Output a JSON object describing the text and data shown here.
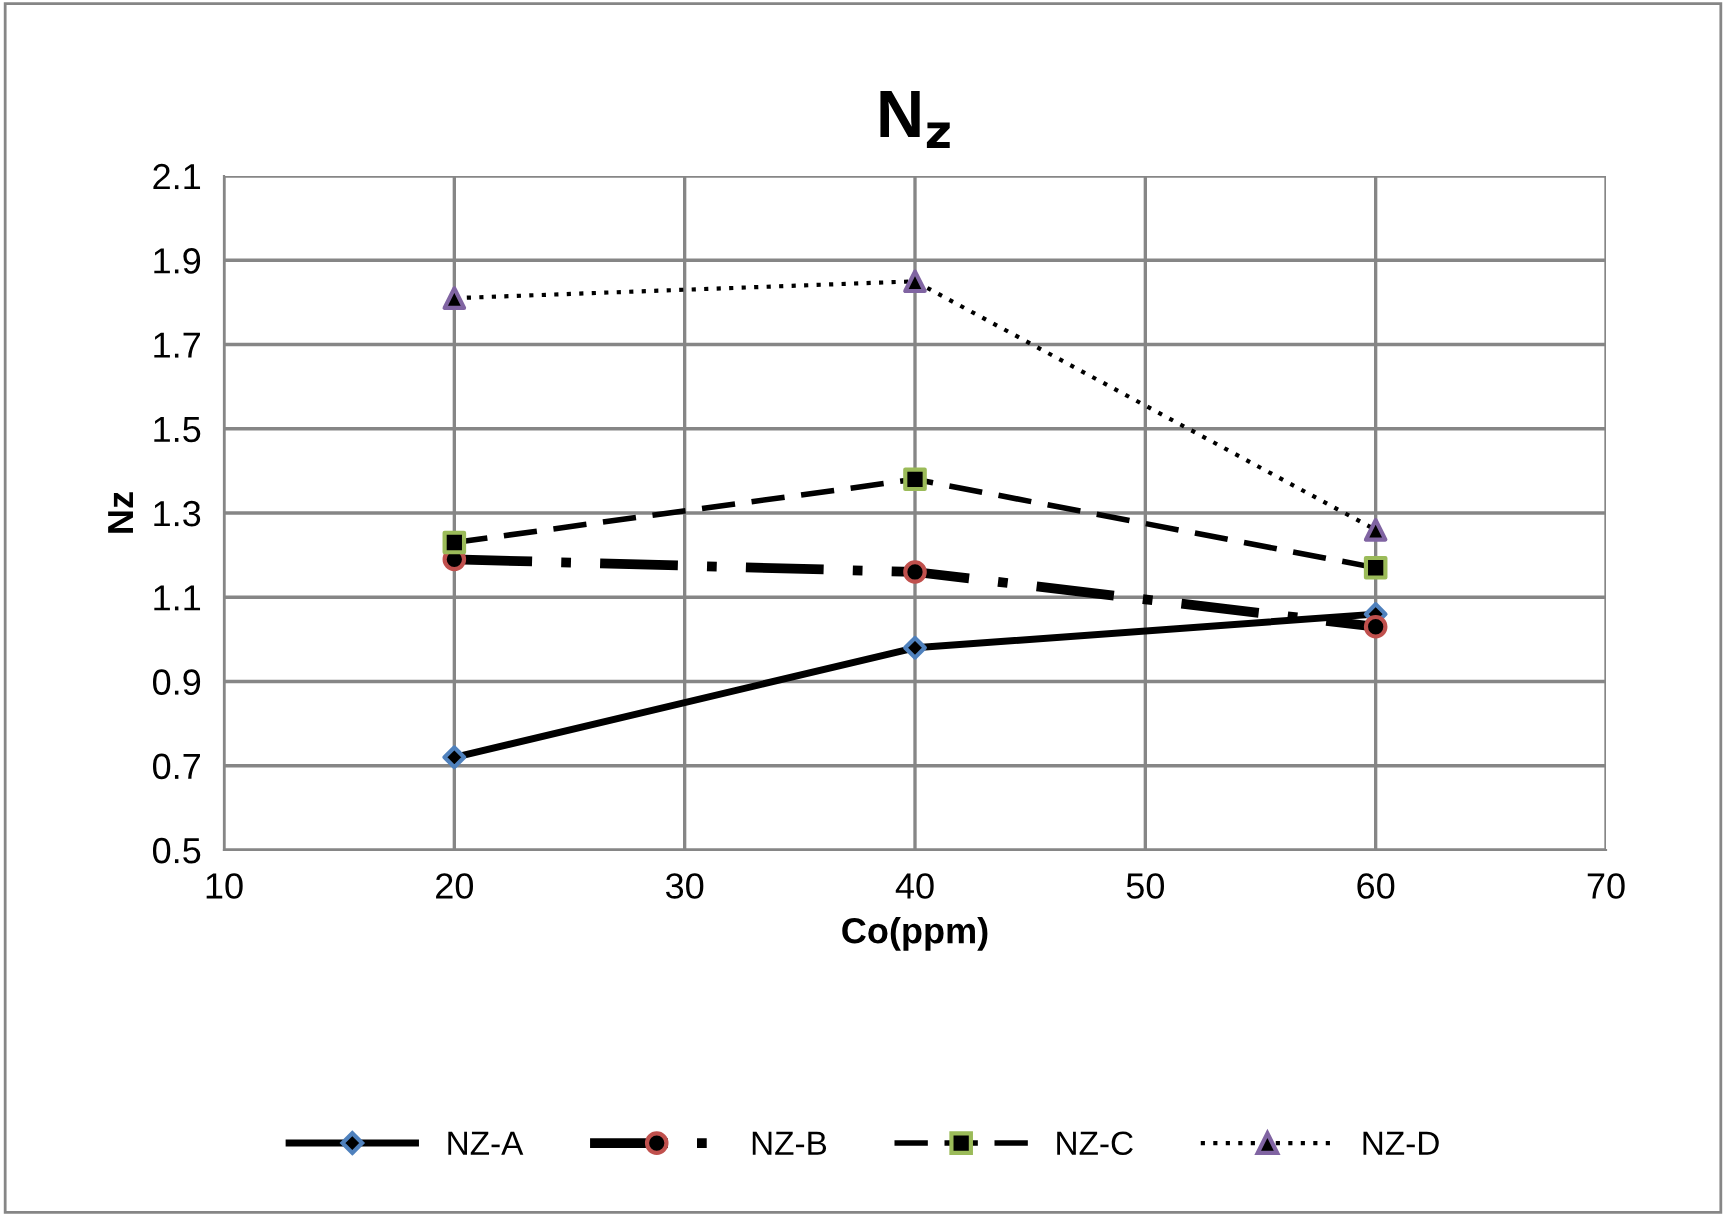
{
  "chart_data": {
    "type": "line",
    "title": "N$_{z}$",
    "xlabel": "Co(ppm)",
    "ylabel": "Nz",
    "x": [
      20,
      40,
      60
    ],
    "series": [
      {
        "name": "NZ-A",
        "color": "#000000",
        "colors": [
          "#4f81bd",
          "#4f81bd",
          "#4f81bd"
        ],
        "marker": "diamond",
        "line_style": "solid",
        "values": [
          0.72,
          0.98,
          1.06
        ]
      },
      {
        "name": "NZ-B",
        "color": "#000000",
        "colors": [
          "#c0504d",
          "#c0504d",
          "#c0504d"
        ],
        "marker": "circle",
        "line_style": "dashdot",
        "values": [
          1.19,
          1.16,
          1.03
        ]
      },
      {
        "name": "NZ-C",
        "color": "#000000",
        "colors": [
          "#9bbb59",
          "#9bbb59",
          "#9bbb59"
        ],
        "marker": "square",
        "line_style": "dashed",
        "values": [
          1.23,
          1.38,
          1.17
        ]
      },
      {
        "name": "NZ-D",
        "color": "#000000",
        "colors": [
          "#8064a2",
          "#8064a2",
          "#8064a2"
        ],
        "marker": "triangle",
        "line_style": "dotted",
        "values": [
          1.81,
          1.85,
          1.26
        ]
      }
    ],
    "xlim": [
      10,
      70
    ],
    "xticks": [
      10,
      20,
      30,
      40,
      50,
      60,
      70
    ],
    "ylim": [
      0.5,
      2.1
    ],
    "yticks": [
      0.5,
      0.7,
      0.9,
      1.1,
      1.3,
      1.5,
      1.7,
      1.9,
      2.1
    ],
    "grid": true,
    "legend": "bottom"
  }
}
